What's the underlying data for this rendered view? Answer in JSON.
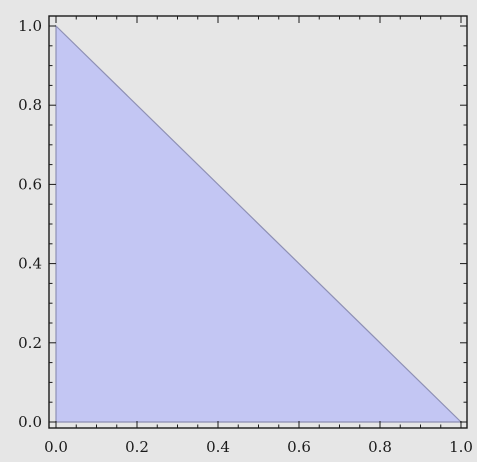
{
  "chart_data": {
    "type": "area",
    "title": "",
    "xlabel": "",
    "ylabel": "",
    "xlim": [
      0,
      1
    ],
    "ylim": [
      0,
      1
    ],
    "x_ticks": [
      "0.0",
      "0.2",
      "0.4",
      "0.6",
      "0.8",
      "1.0"
    ],
    "y_ticks": [
      "0.0",
      "0.2",
      "0.4",
      "0.6",
      "0.8",
      "1.0"
    ],
    "grid": false,
    "series": [
      {
        "points": [
          [
            0,
            0
          ],
          [
            0,
            1
          ],
          [
            1,
            0
          ]
        ]
      }
    ],
    "colors": {
      "fill": "#c3c6f3",
      "stroke": "#8e90b4",
      "background": "#e6e6e6",
      "frame": "#1a1a1a"
    }
  }
}
